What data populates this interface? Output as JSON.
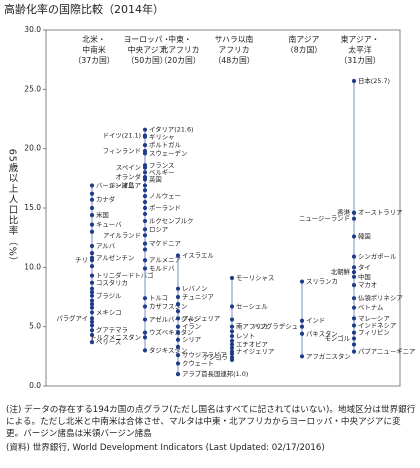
{
  "chart_data": {
    "type": "dot",
    "title": "高齢化率の国際比較（2014年）",
    "y_label": "65歳以上人口比率（%）",
    "ylim": [
      0,
      30
    ],
    "yticks": [
      {
        "value": 0,
        "label": "0.0"
      },
      {
        "value": 5,
        "label": "5.0"
      },
      {
        "value": 10,
        "label": "10.0"
      },
      {
        "value": 15,
        "label": "15.0"
      },
      {
        "value": 20,
        "label": "20.0"
      },
      {
        "value": 25,
        "label": "25.0"
      },
      {
        "value": 30,
        "label": "30.0"
      }
    ],
    "color": "#1f3c88",
    "line_color": "#8fa3cc",
    "series": [
      {
        "header": [
          "北米・",
          "中南米",
          "（37カ国）"
        ],
        "values": [
          16.9,
          16.2,
          15.7,
          15.0,
          14.4,
          13.6,
          13.0,
          11.8,
          11.2,
          10.8,
          10.6,
          10.1,
          9.3,
          8.7,
          8.2,
          7.9,
          7.6,
          7.2,
          6.9,
          6.6,
          6.2,
          5.7,
          5.4,
          5.1,
          4.7,
          4.3,
          3.7
        ],
        "labels": [
          "バージン諸島",
          null,
          "カナダ",
          null,
          "米国",
          "キューバ",
          null,
          "アルバ",
          null,
          "アルゼンチン",
          "チリ",
          null,
          "トリニダードトバゴ",
          "コスタリカ",
          null,
          null,
          "ブラジル",
          null,
          null,
          null,
          "メキシコ",
          "パラグアイ",
          null,
          null,
          "グアテマラ",
          null,
          "ベリーズ"
        ]
      },
      {
        "header": [
          "ヨーロッパ・",
          "中央アジア",
          "（50カ国）"
        ],
        "values": [
          21.6,
          21.1,
          21.0,
          20.3,
          19.8,
          19.6,
          18.6,
          18.4,
          18.0,
          17.6,
          17.4,
          16.9,
          16.5,
          16.0,
          15.5,
          15.0,
          14.5,
          13.9,
          13.2,
          12.7,
          12.0,
          11.5,
          10.6,
          9.9,
          7.4,
          6.7,
          5.6,
          4.5,
          4.1,
          3.0
        ],
        "labels": [
          "イタリア(21.6)",
          "ドイツ(21.1)",
          "ギリシャ",
          "ポルトガル",
          "フィンランド",
          "スウェーデン",
          "フランス",
          "スペイン",
          "ベルギー",
          "オランダ",
          "英国",
          "ルーマニア",
          null,
          "ノルウェー",
          null,
          "ポーランド",
          null,
          "ルクセンブルク",
          "ロシア",
          "アイルランド",
          "マケドニア",
          null,
          "アルメニア",
          "モルドバ",
          "トルコ",
          "カザフスタン",
          "アゼルバイジャン",
          "ウズベキスタン",
          "トルクメニスタン",
          "タジキスタン"
        ]
      },
      {
        "header": [
          "中東・",
          "北アフリカ",
          "（20カ国）"
        ],
        "values": [
          11.0,
          8.2,
          7.5,
          6.9,
          6.3,
          5.7,
          5.0,
          4.5,
          3.9,
          3.3,
          2.6,
          1.9,
          1.0
        ],
        "labels": [
          "イスラエル",
          "レバノン",
          "チュニジア",
          null,
          null,
          "アルジェリア",
          "イラン",
          null,
          "シリア",
          null,
          "サウジアラビア",
          "クウェート",
          "アラブ首長国連邦(1.0)"
        ]
      },
      {
        "header": [
          "サハラ以南",
          "アフリカ",
          "（48カ国）"
        ],
        "values": [
          9.1,
          6.7,
          5.6,
          5.0,
          4.6,
          4.2,
          3.8,
          3.5,
          3.2,
          2.9,
          2.7,
          2.4,
          2.2
        ],
        "labels": [
          "モーリシャス",
          "セーシェル",
          null,
          "南アフリカ",
          null,
          "レソト",
          null,
          "エチオピア",
          null,
          "ナイジェリア",
          null,
          "アンゴラ",
          null
        ]
      },
      {
        "header": [
          "南アジア",
          "（8カ国）"
        ],
        "values": [
          8.8,
          5.5,
          5.0,
          4.4,
          2.5
        ],
        "labels": [
          "スリランカ",
          "インド",
          "バングラデシュ",
          "パキスタン",
          "アフガニスタン"
        ]
      },
      {
        "header": [
          "東アジア・",
          "太平洋",
          "（31カ国）"
        ],
        "values": [
          25.7,
          14.6,
          14.6,
          14.1,
          12.6,
          10.9,
          10.0,
          9.6,
          9.2,
          8.5,
          7.4,
          6.6,
          5.7,
          5.1,
          4.5,
          4.0,
          3.5,
          2.9
        ],
        "labels": [
          "日本(25.7)",
          "オーストラリア",
          "香港",
          "ニュージーランド",
          "韓国",
          "シンガポール",
          "タイ",
          "北朝鮮",
          "中国",
          "マカオ",
          "仏領ポリネシア",
          "ベトナム",
          "マレーシア",
          "インドネシア",
          "フィリピン",
          "モンゴル",
          null,
          "パプアニューギニア"
        ]
      }
    ]
  },
  "notes": [
    "(注) データの存在する194カ国の点グラフ(ただし国名はすべてに記されてはいない)。地域区分は世界銀行による。ただし北米と中南米は合体させ、マルタは中東・北アフリカからヨーロッパ・中央アジアに変更。バージン諸島は米領バージン諸島",
    "(資料) 世界銀行, World Development Indicators (Last Updated: 02/17/2016)"
  ]
}
